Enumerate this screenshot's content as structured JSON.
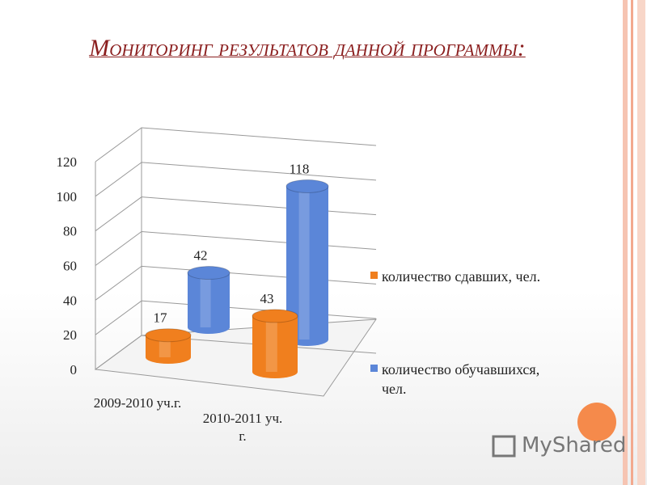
{
  "chart_data": {
    "type": "cylinder3d",
    "title": "Мониторинг результатов данной программы:",
    "categories": [
      "2009-2010 уч.г.",
      "2010-2011 уч. г."
    ],
    "series": [
      {
        "name": "количество сдавших, чел.",
        "color": "#f07f1e",
        "values": [
          17,
          43
        ]
      },
      {
        "name": "количество обучавшихся, чел.",
        "color": "#5b86d8",
        "values": [
          42,
          118
        ]
      }
    ],
    "ylim": [
      0,
      120
    ],
    "yticks": [
      0,
      20,
      40,
      60,
      80,
      100,
      120
    ],
    "grid": true,
    "legend": "right"
  },
  "watermark": "MyShared"
}
